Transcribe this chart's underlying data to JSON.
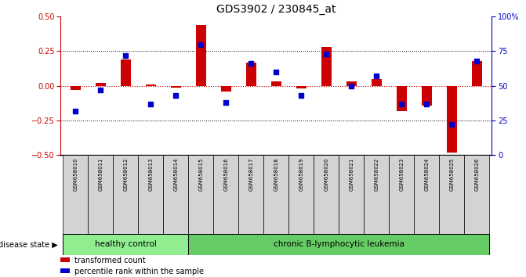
{
  "title": "GDS3902 / 230845_at",
  "samples": [
    "GSM658010",
    "GSM658011",
    "GSM658012",
    "GSM658013",
    "GSM658014",
    "GSM658015",
    "GSM658016",
    "GSM658017",
    "GSM658018",
    "GSM658019",
    "GSM658020",
    "GSM658021",
    "GSM658022",
    "GSM658023",
    "GSM658024",
    "GSM658025",
    "GSM658026"
  ],
  "red_bars": [
    -0.03,
    0.02,
    0.19,
    0.01,
    -0.01,
    0.44,
    -0.04,
    0.17,
    0.03,
    -0.02,
    0.28,
    0.03,
    0.05,
    -0.18,
    -0.14,
    -0.48,
    0.18
  ],
  "blue_dots": [
    32,
    47,
    72,
    37,
    43,
    80,
    38,
    66,
    60,
    43,
    73,
    50,
    57,
    37,
    37,
    22,
    68
  ],
  "healthy_count": 5,
  "ylim_left": [
    -0.5,
    0.5
  ],
  "ylim_right": [
    0,
    100
  ],
  "yticks_left": [
    -0.5,
    -0.25,
    0.0,
    0.25,
    0.5
  ],
  "yticks_right": [
    0,
    25,
    50,
    75,
    100
  ],
  "bar_color": "#cc0000",
  "dot_color": "#0000cc",
  "healthy_color": "#90ee90",
  "leukemia_color": "#66cc66",
  "tick_color_left": "#cc0000",
  "tick_color_right": "#0000cc",
  "legend_bar_label": "transformed count",
  "legend_dot_label": "percentile rank within the sample",
  "disease_label": "disease state",
  "healthy_label": "healthy control",
  "leukemia_label": "chronic B-lymphocytic leukemia",
  "bg_color": "#ffffff",
  "cell_color": "#d3d3d3",
  "bar_width": 0.4
}
